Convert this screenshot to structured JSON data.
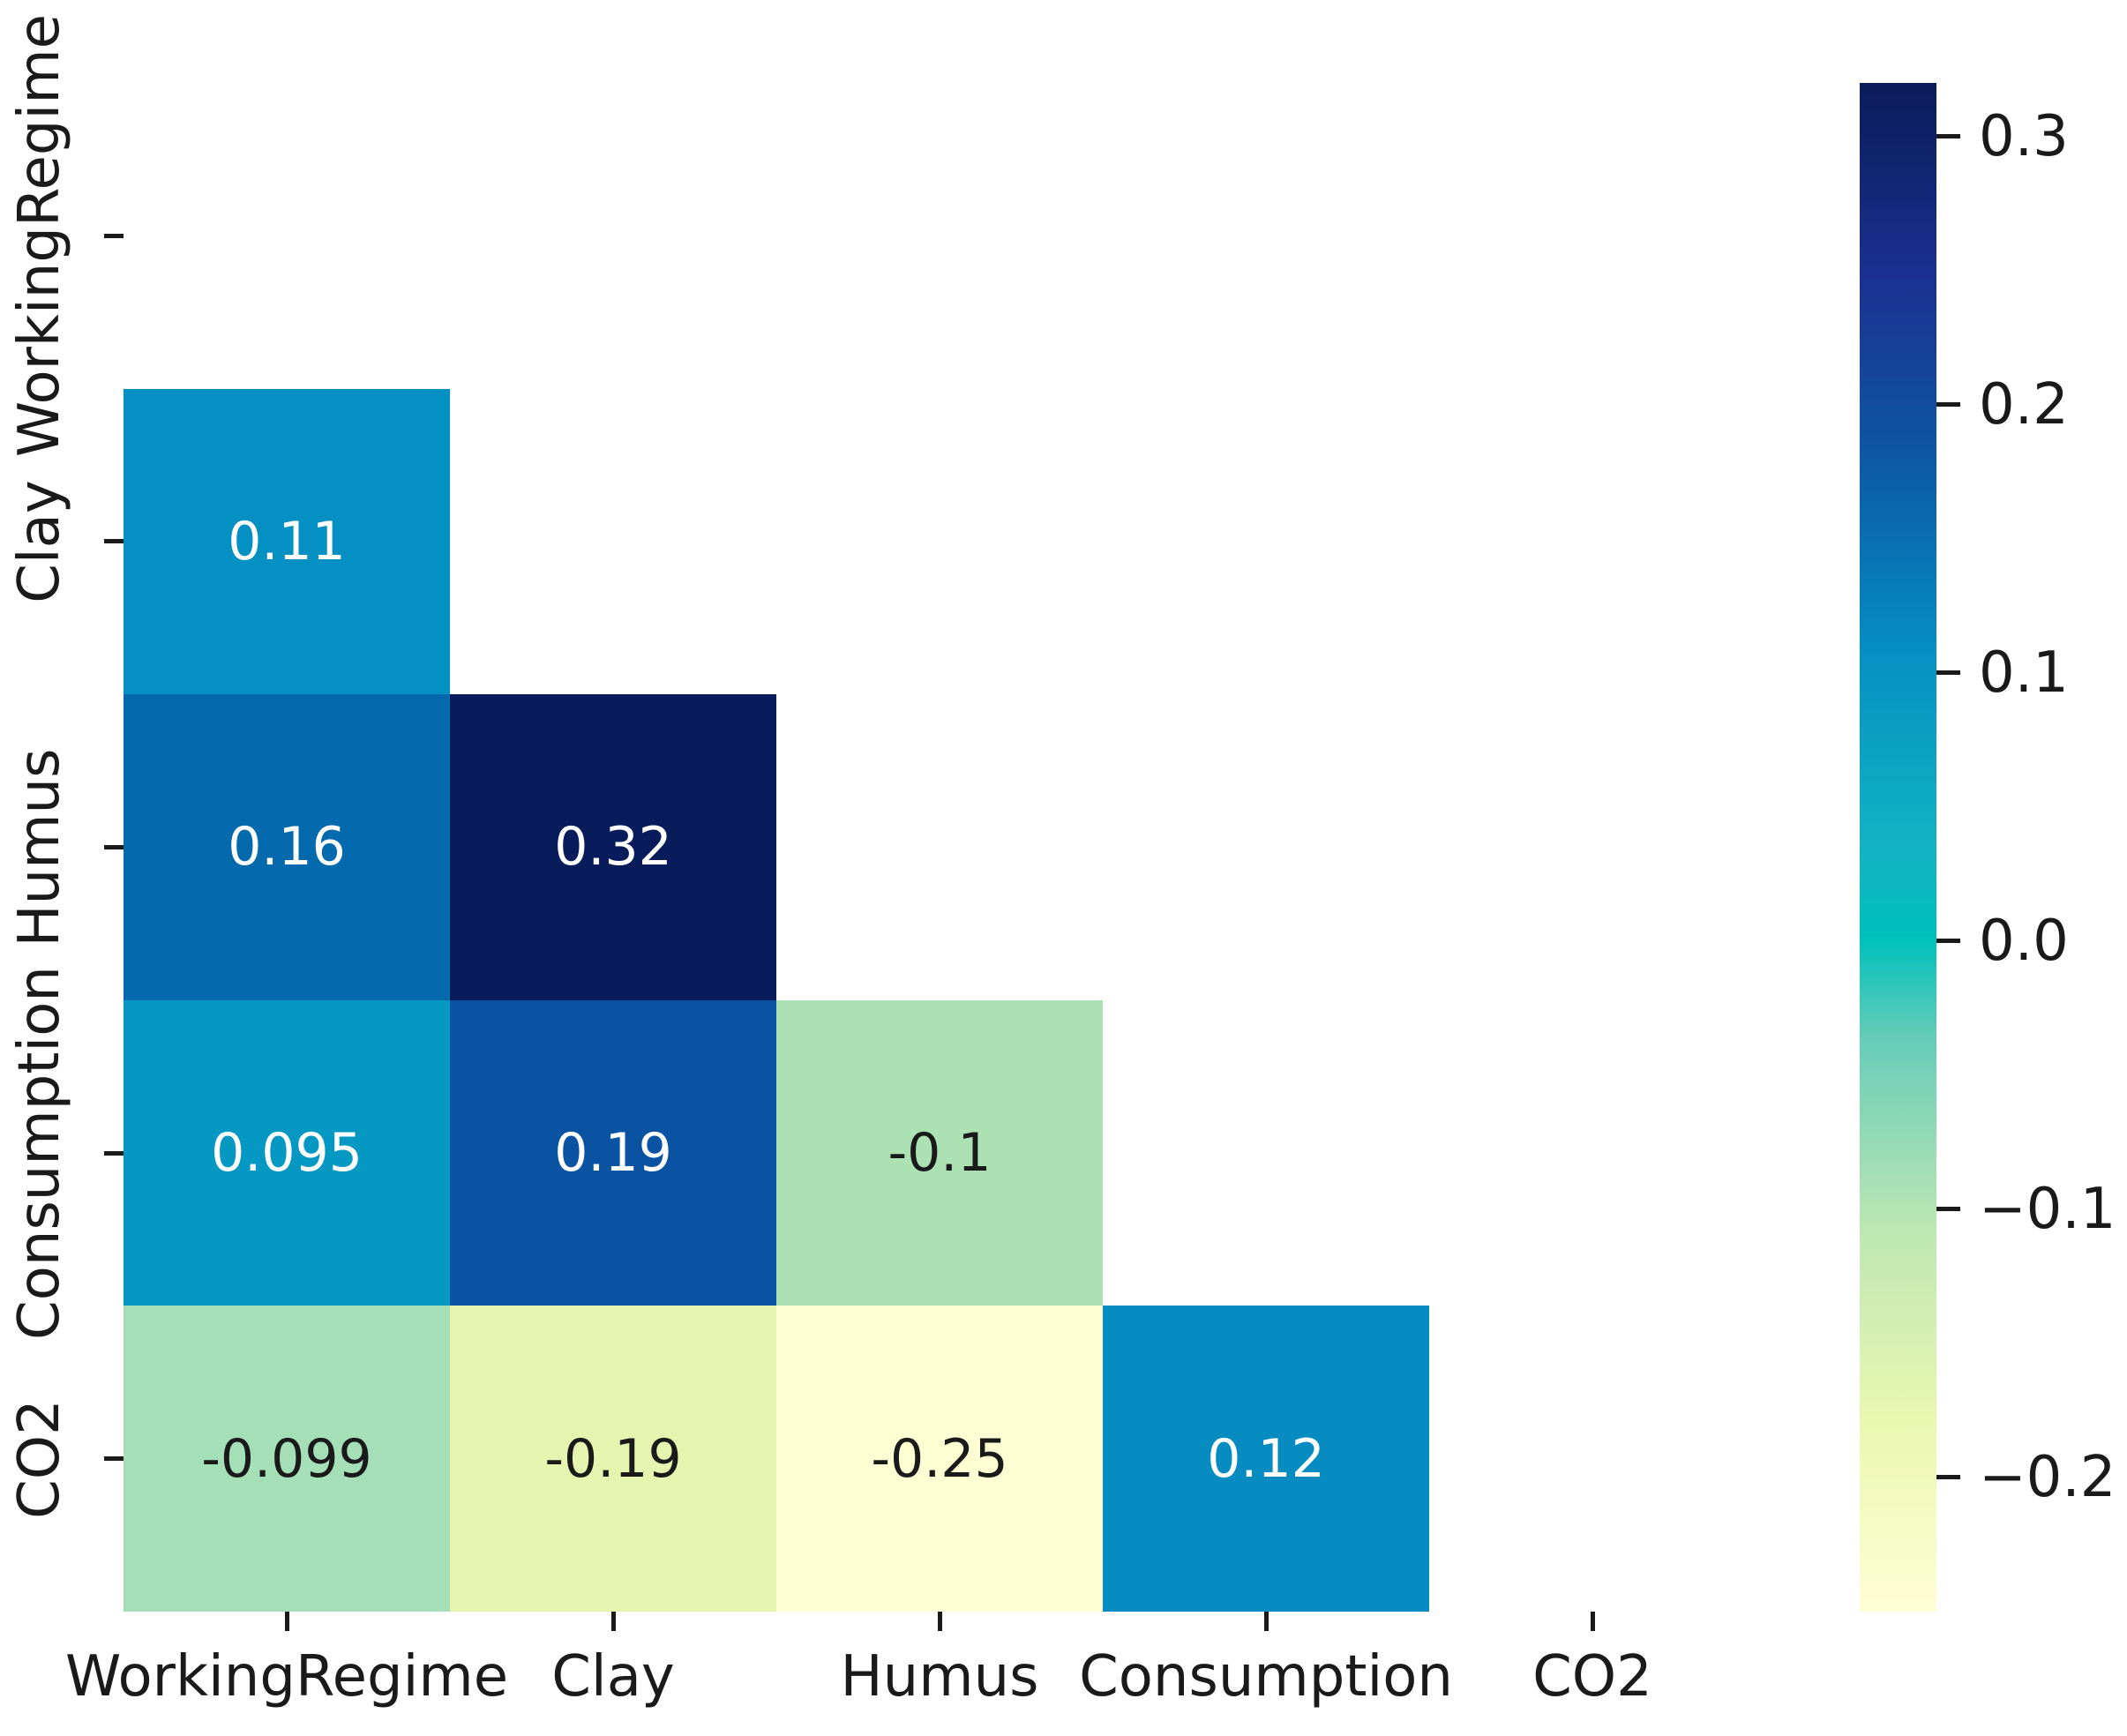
{
  "figure": {
    "background": "#ffffff",
    "axis_text_color": "#1a1a1a"
  },
  "chart_data": {
    "type": "heatmap",
    "title": "",
    "xlabel": "",
    "ylabel": "",
    "variables": [
      "WorkingRegime",
      "Clay",
      "Humus",
      "Consumption",
      "CO2"
    ],
    "x_tick_labels": [
      "WorkingRegime",
      "Clay",
      "Humus",
      "Consumption",
      "CO2"
    ],
    "y_tick_labels": [
      "WorkingRegime",
      "Clay",
      "Humus",
      "Consumption",
      "CO2"
    ],
    "mask": "upper triangle and diagonal hidden (lower-triangle correlation matrix)",
    "colormap": "YlGnBu",
    "vmin": -0.25,
    "vmax": 0.32,
    "grid": false,
    "matrix": [
      [
        null,
        null,
        null,
        null,
        null
      ],
      [
        0.11,
        null,
        null,
        null,
        null
      ],
      [
        0.16,
        0.32,
        null,
        null,
        null
      ],
      [
        0.095,
        0.19,
        -0.1,
        null,
        null
      ],
      [
        -0.099,
        -0.19,
        -0.25,
        0.12,
        null
      ]
    ],
    "cells": [
      {
        "row": 1,
        "col": 0,
        "label": "0.11",
        "value": 0.11,
        "bg": "#0590c4",
        "fg": "#ffffff"
      },
      {
        "row": 2,
        "col": 0,
        "label": "0.16",
        "value": 0.16,
        "bg": "#0569ae",
        "fg": "#ffffff"
      },
      {
        "row": 2,
        "col": 1,
        "label": "0.32",
        "value": 0.32,
        "bg": "#081c5c",
        "fg": "#ffffff"
      },
      {
        "row": 3,
        "col": 0,
        "label": "0.095",
        "value": 0.095,
        "bg": "#0598c3",
        "fg": "#ffffff"
      },
      {
        "row": 3,
        "col": 1,
        "label": "0.19",
        "value": 0.19,
        "bg": "#0a52a2",
        "fg": "#ffffff"
      },
      {
        "row": 3,
        "col": 2,
        "label": "-0.1",
        "value": -0.1,
        "bg": "#ace1b4",
        "fg": "#1a1a1a"
      },
      {
        "row": 4,
        "col": 0,
        "label": "-0.099",
        "value": -0.099,
        "bg": "#a5dfb8",
        "fg": "#1a1a1a"
      },
      {
        "row": 4,
        "col": 1,
        "label": "-0.19",
        "value": -0.19,
        "bg": "#e5f5b0",
        "fg": "#1a1a1a"
      },
      {
        "row": 4,
        "col": 2,
        "label": "-0.25",
        "value": -0.25,
        "bg": "#feffd3",
        "fg": "#1a1a1a"
      },
      {
        "row": 4,
        "col": 3,
        "label": "0.12",
        "value": 0.12,
        "bg": "#068cc0",
        "fg": "#ffffff"
      }
    ],
    "colorbar": {
      "position": "right",
      "tick_labels": [
        "0.3",
        "0.2",
        "0.1",
        "0.0",
        "−0.1",
        "−0.2"
      ],
      "tick_values": [
        0.3,
        0.2,
        0.1,
        0.0,
        -0.1,
        -0.2
      ],
      "gradient_stops": [
        {
          "pos": 0,
          "color": "#0a1c59"
        },
        {
          "pos": 12.5,
          "color": "#1b3090"
        },
        {
          "pos": 25,
          "color": "#0c5aa5"
        },
        {
          "pos": 37.5,
          "color": "#0591c2"
        },
        {
          "pos": 50,
          "color": "#12b3c3"
        },
        {
          "pos": 56.1,
          "color": "#00c1bc"
        },
        {
          "pos": 62.5,
          "color": "#66ccb8"
        },
        {
          "pos": 75,
          "color": "#bde7b3"
        },
        {
          "pos": 87.5,
          "color": "#eaf7b0"
        },
        {
          "pos": 100,
          "color": "#feffd5"
        }
      ]
    }
  }
}
